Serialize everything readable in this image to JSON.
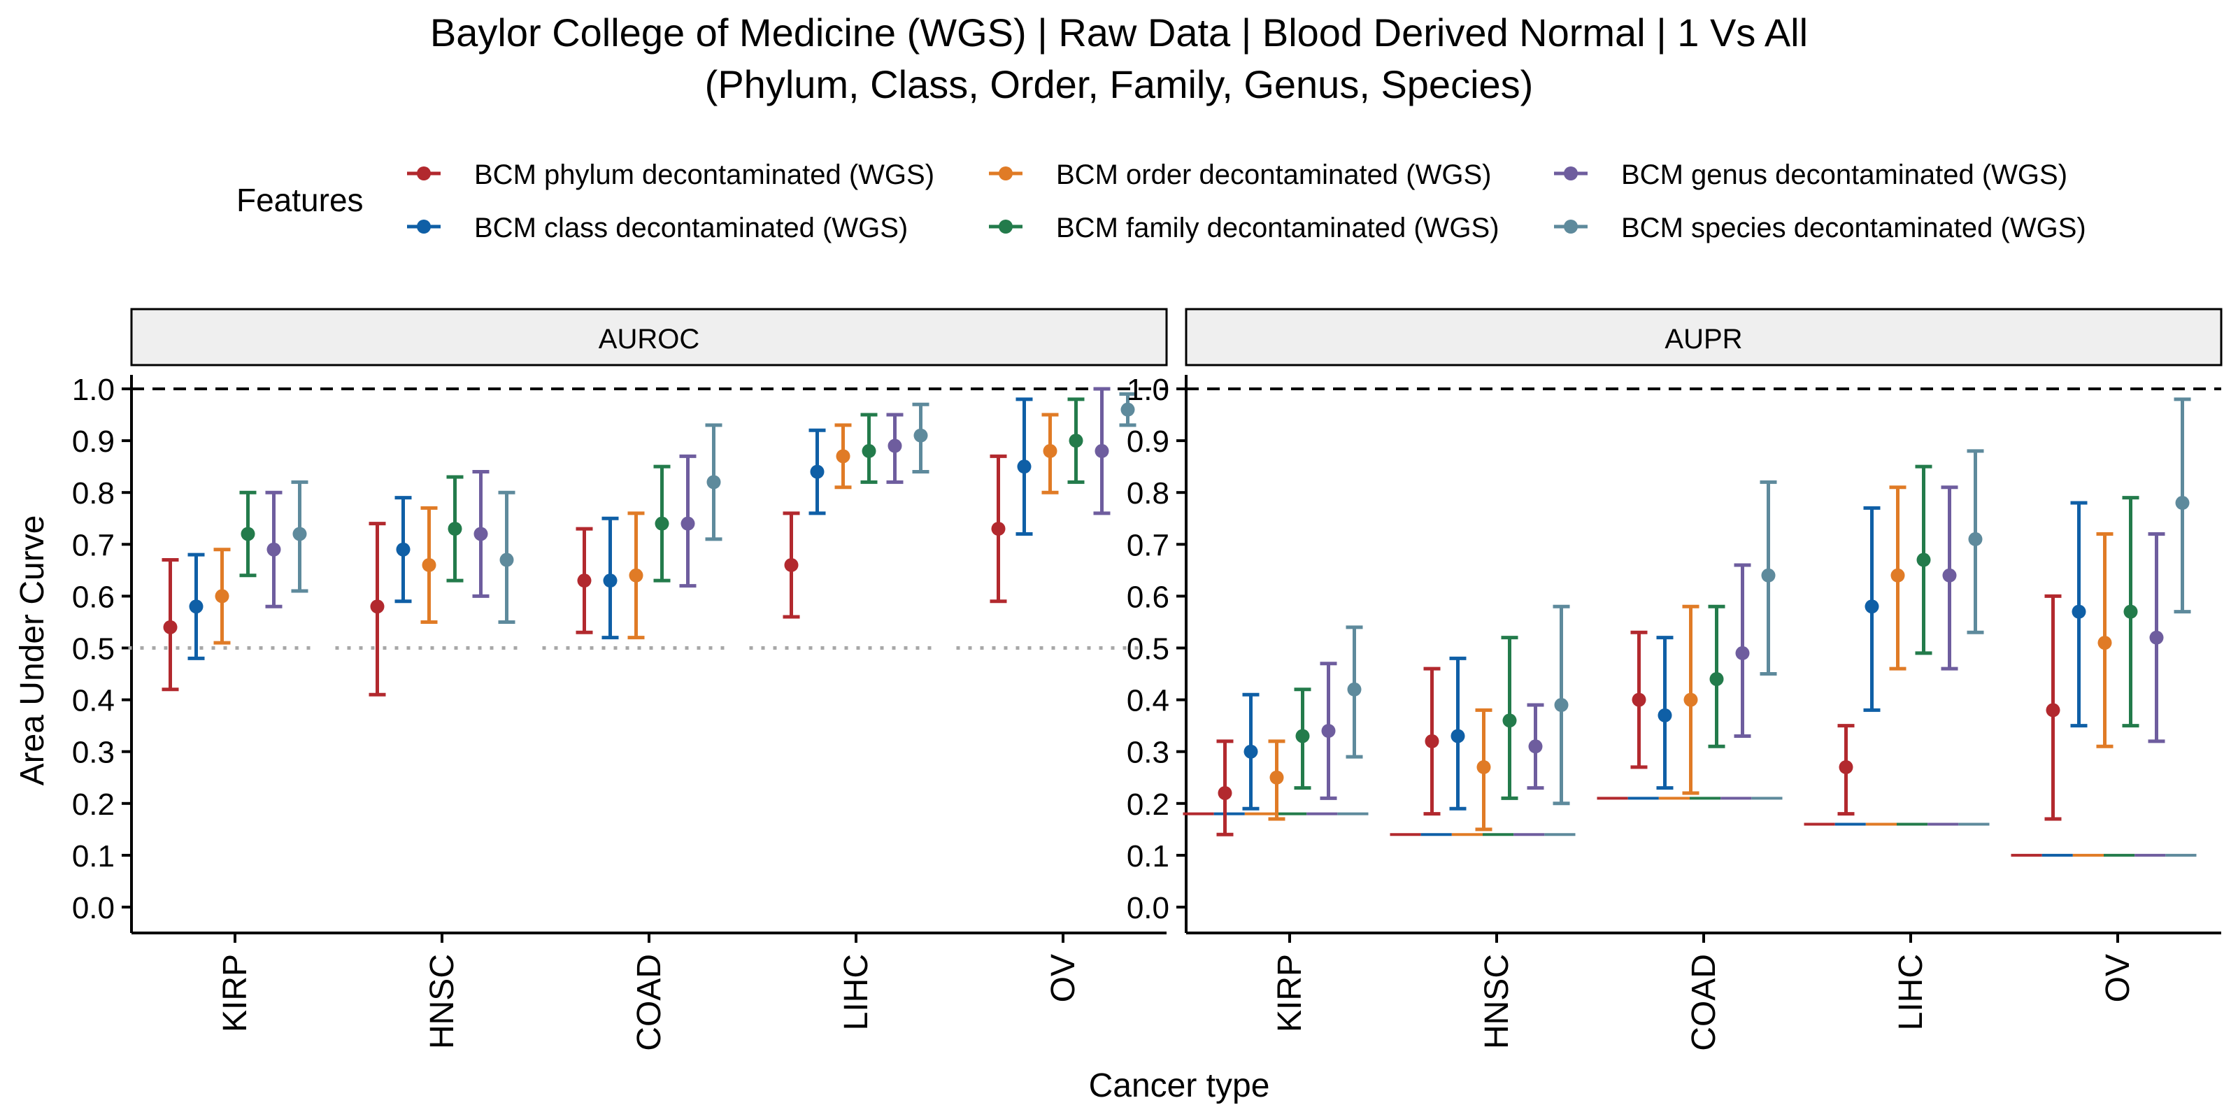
{
  "chart_data": {
    "type": "errorbar-dot",
    "title": "Baylor College of Medicine (WGS) | Raw Data | Blood Derived Normal | 1 Vs All",
    "subtitle": "(Phylum, Class, Order, Family, Genus, Species)",
    "xlabel": "Cancer type",
    "ylabel": "Area Under Curve",
    "ylim": [
      0,
      1
    ],
    "y_ticks": [
      "0.0",
      "0.1",
      "0.2",
      "0.3",
      "0.4",
      "0.5",
      "0.6",
      "0.7",
      "0.8",
      "0.9",
      "1.0"
    ],
    "reference_line": 1.0,
    "legend_title": "Features",
    "legend_placement": "top",
    "categories": [
      "KIRP",
      "HNSC",
      "COAD",
      "LIHC",
      "OV"
    ],
    "series": [
      {
        "name": "BCM phylum decontaminated (WGS)",
        "color": "#B2292E"
      },
      {
        "name": "BCM class decontaminated (WGS)",
        "color": "#0F5FA6"
      },
      {
        "name": "BCM order decontaminated (WGS)",
        "color": "#E07B26"
      },
      {
        "name": "BCM family decontaminated (WGS)",
        "color": "#237B4B"
      },
      {
        "name": "BCM genus decontaminated (WGS)",
        "color": "#6E5D9E"
      },
      {
        "name": "BCM species decontaminated (WGS)",
        "color": "#5E8A9C"
      }
    ],
    "panels": [
      {
        "label": "AUROC",
        "baseline": [
          0.5,
          0.5,
          0.5,
          0.5,
          0.5
        ],
        "baseline_style": "dotted",
        "values": [
          [
            [
              0.54,
              0.42,
              0.67
            ],
            [
              0.58,
              0.48,
              0.68
            ],
            [
              0.6,
              0.51,
              0.69
            ],
            [
              0.72,
              0.64,
              0.8
            ],
            [
              0.69,
              0.58,
              0.8
            ],
            [
              0.72,
              0.61,
              0.82
            ]
          ],
          [
            [
              0.58,
              0.41,
              0.74
            ],
            [
              0.69,
              0.59,
              0.79
            ],
            [
              0.66,
              0.55,
              0.77
            ],
            [
              0.73,
              0.63,
              0.83
            ],
            [
              0.72,
              0.6,
              0.84
            ],
            [
              0.67,
              0.55,
              0.8
            ]
          ],
          [
            [
              0.63,
              0.53,
              0.73
            ],
            [
              0.63,
              0.52,
              0.75
            ],
            [
              0.64,
              0.52,
              0.76
            ],
            [
              0.74,
              0.63,
              0.85
            ],
            [
              0.74,
              0.62,
              0.87
            ],
            [
              0.82,
              0.71,
              0.93
            ]
          ],
          [
            [
              0.66,
              0.56,
              0.76
            ],
            [
              0.84,
              0.76,
              0.92
            ],
            [
              0.87,
              0.81,
              0.93
            ],
            [
              0.88,
              0.82,
              0.95
            ],
            [
              0.89,
              0.82,
              0.95
            ],
            [
              0.91,
              0.84,
              0.97
            ]
          ],
          [
            [
              0.73,
              0.59,
              0.87
            ],
            [
              0.85,
              0.72,
              0.98
            ],
            [
              0.88,
              0.8,
              0.95
            ],
            [
              0.9,
              0.82,
              0.98
            ],
            [
              0.88,
              0.76,
              1.0
            ],
            [
              0.96,
              0.93,
              0.99
            ]
          ]
        ]
      },
      {
        "label": "AUPR",
        "baseline": [
          0.18,
          0.14,
          0.21,
          0.16,
          0.1
        ],
        "baseline_style": "solid",
        "values": [
          [
            [
              0.22,
              0.14,
              0.32
            ],
            [
              0.3,
              0.19,
              0.41
            ],
            [
              0.25,
              0.17,
              0.32
            ],
            [
              0.33,
              0.23,
              0.42
            ],
            [
              0.34,
              0.21,
              0.47
            ],
            [
              0.42,
              0.29,
              0.54
            ]
          ],
          [
            [
              0.32,
              0.18,
              0.46
            ],
            [
              0.33,
              0.19,
              0.48
            ],
            [
              0.27,
              0.15,
              0.38
            ],
            [
              0.36,
              0.21,
              0.52
            ],
            [
              0.31,
              0.23,
              0.39
            ],
            [
              0.39,
              0.2,
              0.58
            ]
          ],
          [
            [
              0.4,
              0.27,
              0.53
            ],
            [
              0.37,
              0.23,
              0.52
            ],
            [
              0.4,
              0.22,
              0.58
            ],
            [
              0.44,
              0.31,
              0.58
            ],
            [
              0.49,
              0.33,
              0.66
            ],
            [
              0.64,
              0.45,
              0.82
            ]
          ],
          [
            [
              0.27,
              0.18,
              0.35
            ],
            [
              0.58,
              0.38,
              0.77
            ],
            [
              0.64,
              0.46,
              0.81
            ],
            [
              0.67,
              0.49,
              0.85
            ],
            [
              0.64,
              0.46,
              0.81
            ],
            [
              0.71,
              0.53,
              0.88
            ]
          ],
          [
            [
              0.38,
              0.17,
              0.6
            ],
            [
              0.57,
              0.35,
              0.78
            ],
            [
              0.51,
              0.31,
              0.72
            ],
            [
              0.57,
              0.35,
              0.79
            ],
            [
              0.52,
              0.32,
              0.72
            ],
            [
              0.78,
              0.57,
              0.98
            ]
          ]
        ]
      }
    ]
  }
}
